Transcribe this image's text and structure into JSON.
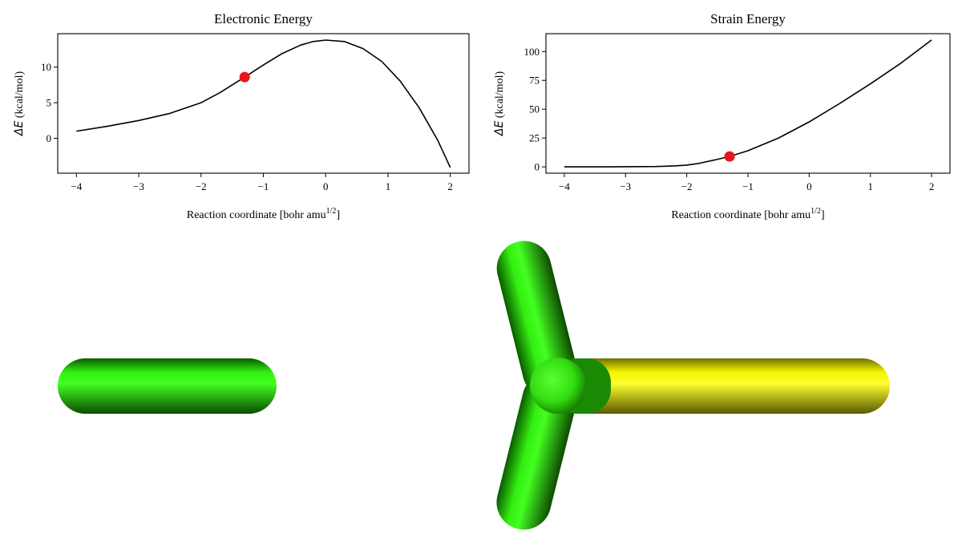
{
  "chart_data": [
    {
      "type": "line",
      "title": "Electronic Energy",
      "xlabel": "Reaction coordinate [bohr amu",
      "xlabel_sup": "1/2",
      "xlabel_end": "]",
      "ylabel_symbol": "ΔE",
      "ylabel_unit": " (kcal/mol)",
      "xlim": [
        -4.3,
        2.3
      ],
      "ylim": [
        -4.9,
        14.7
      ],
      "xticks": [
        -4,
        -3,
        -2,
        -1,
        0,
        1,
        2
      ],
      "yticks": [
        0,
        5,
        10
      ],
      "xtick_labels": [
        "−4",
        "−3",
        "−2",
        "−1",
        "0",
        "1",
        "2"
      ],
      "ytick_labels": [
        "0",
        "5",
        "10"
      ],
      "grid": false,
      "series": [
        {
          "color": "#000000",
          "x": [
            -4.0,
            -3.5,
            -3.0,
            -2.5,
            -2.0,
            -1.7,
            -1.3,
            -1.0,
            -0.7,
            -0.4,
            -0.2,
            0.0,
            0.3,
            0.6,
            0.9,
            1.2,
            1.5,
            1.8,
            2.0
          ],
          "y": [
            1.0,
            1.7,
            2.5,
            3.5,
            5.0,
            6.4,
            8.6,
            10.3,
            11.9,
            13.1,
            13.6,
            13.8,
            13.6,
            12.6,
            10.8,
            8.0,
            4.3,
            -0.3,
            -4.1
          ]
        }
      ],
      "marker": {
        "x": -1.3,
        "y": 8.6,
        "color": "#e8141c"
      }
    },
    {
      "type": "line",
      "title": "Strain Energy",
      "xlabel": "Reaction coordinate [bohr amu",
      "xlabel_sup": "1/2",
      "xlabel_end": "]",
      "ylabel_symbol": "ΔE",
      "ylabel_unit": " (kcal/mol)",
      "xlim": [
        -4.3,
        2.3
      ],
      "ylim": [
        -5.5,
        115.5
      ],
      "xticks": [
        -4,
        -3,
        -2,
        -1,
        0,
        1,
        2
      ],
      "yticks": [
        0,
        25,
        50,
        75,
        100
      ],
      "xtick_labels": [
        "−4",
        "−3",
        "−2",
        "−1",
        "0",
        "1",
        "2"
      ],
      "ytick_labels": [
        "0",
        "25",
        "50",
        "75",
        "100"
      ],
      "grid": false,
      "series": [
        {
          "color": "#000000",
          "x": [
            -4.0,
            -3.5,
            -3.0,
            -2.5,
            -2.2,
            -2.0,
            -1.8,
            -1.5,
            -1.3,
            -1.0,
            -0.5,
            0.0,
            0.5,
            1.0,
            1.5,
            2.0
          ],
          "y": [
            0.0,
            0.0,
            0.1,
            0.3,
            0.8,
            1.5,
            3.0,
            6.5,
            9.0,
            14.0,
            25.0,
            39.0,
            55.0,
            72.0,
            90.0,
            110.0
          ]
        }
      ],
      "marker": {
        "x": -1.3,
        "y": 9.0,
        "color": "#e8141c"
      }
    }
  ],
  "molecules": {
    "left": {
      "description_colors": [
        "#22dd00"
      ]
    },
    "right": {
      "description_colors": [
        "#22dd00",
        "#f0f000"
      ]
    }
  }
}
